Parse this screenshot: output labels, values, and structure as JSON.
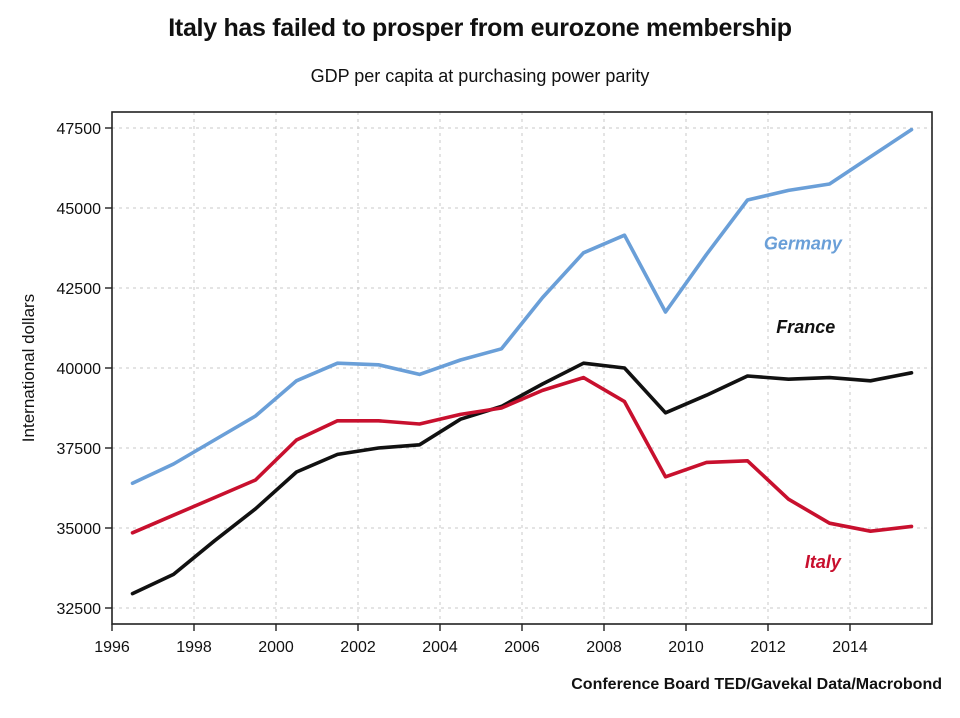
{
  "chart_data": {
    "type": "line",
    "title": "Italy has failed to prosper from eurozone membership",
    "subtitle": "GDP per capita at purchasing power parity",
    "ylabel": "International dollars",
    "xlabel": "",
    "source": "Conference Board TED/Gavekal Data/Macrobond",
    "xlim": [
      1996,
      2016
    ],
    "ylim": [
      32000,
      48000
    ],
    "x_ticks": [
      "1996",
      "1998",
      "2000",
      "2002",
      "2004",
      "2006",
      "2008",
      "2010",
      "2012",
      "2014"
    ],
    "y_ticks": [
      "32500",
      "35000",
      "37500",
      "40000",
      "42500",
      "45000",
      "47500"
    ],
    "grid": true,
    "x": [
      1996.5,
      1997.5,
      1998.5,
      1999.5,
      2000.5,
      2001.5,
      2002.5,
      2003.5,
      2004.5,
      2005.5,
      2006.5,
      2007.5,
      2008.5,
      2009.5,
      2010.5,
      2011.5,
      2012.5,
      2013.5,
      2014.5,
      2015.5
    ],
    "series": [
      {
        "name": "Germany",
        "color": "#6a9fd8",
        "values": [
          36400,
          37000,
          37750,
          38500,
          39600,
          40150,
          40100,
          39800,
          40250,
          40600,
          42200,
          43600,
          44150,
          41750,
          43550,
          45250,
          45550,
          45750,
          46600,
          47450
        ]
      },
      {
        "name": "France",
        "color": "#111111",
        "values": [
          32950,
          33550,
          34600,
          35600,
          36750,
          37300,
          37500,
          37600,
          38400,
          38800,
          39500,
          40150,
          40000,
          38600,
          39150,
          39750,
          39650,
          39700,
          39600,
          39850
        ]
      },
      {
        "name": "Italy",
        "color": "#c8102e",
        "values": [
          34850,
          35400,
          35950,
          36500,
          37750,
          38350,
          38350,
          38250,
          38550,
          38750,
          39300,
          39700,
          38950,
          36600,
          37050,
          37100,
          35900,
          35150,
          34900,
          35050
        ]
      }
    ],
    "series_labels": [
      {
        "name": "Germany",
        "x": 2011.9,
        "y": 43700
      },
      {
        "name": "France",
        "x": 2012.2,
        "y": 41100
      },
      {
        "name": "Italy",
        "x": 2012.9,
        "y": 33750
      }
    ]
  }
}
